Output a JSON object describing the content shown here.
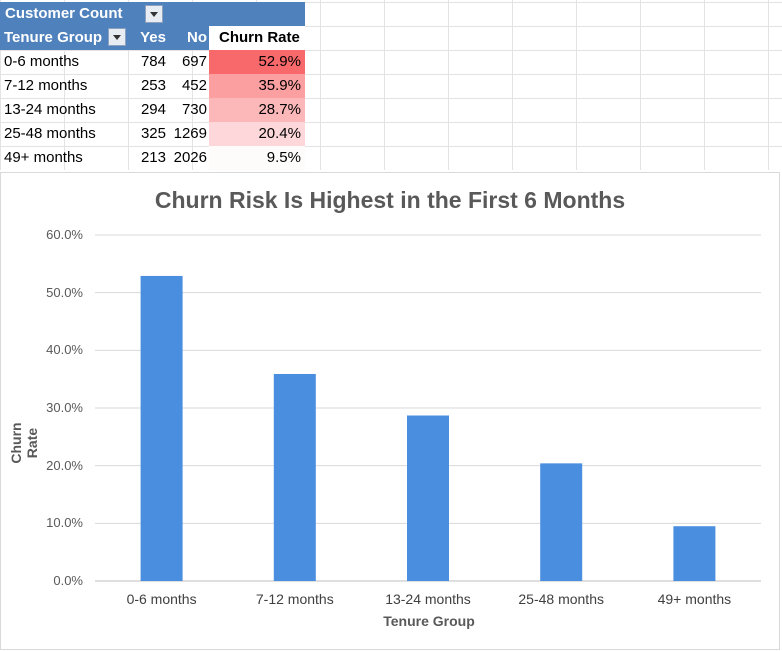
{
  "pivot": {
    "title": "Customer Count",
    "headers": {
      "group": "Tenure Group",
      "yes": "Yes",
      "no": "No",
      "churn": "Churn Rate"
    },
    "rows": [
      {
        "group": "0-6 months",
        "yes": "784",
        "no": "697",
        "churn": "52.9%"
      },
      {
        "group": "7-12 months",
        "yes": "253",
        "no": "452",
        "churn": "35.9%"
      },
      {
        "group": "13-24 months",
        "yes": "294",
        "no": "730",
        "churn": "28.7%"
      },
      {
        "group": "25-48 months",
        "yes": "325",
        "no": "1269",
        "churn": "20.4%"
      },
      {
        "group": "49+ months",
        "yes": "213",
        "no": "2026",
        "churn": "9.5%"
      }
    ],
    "heat_colors": [
      "#f8696b",
      "#fb9fa1",
      "#fcb7b9",
      "#fdd7d9",
      "#fefbfb"
    ],
    "header_color": "#4f81bd"
  },
  "chart_data": {
    "type": "bar",
    "title": "Churn Risk Is Highest in the First 6 Months",
    "xlabel": "Tenure Group",
    "ylabel": "Churn Rate",
    "categories": [
      "0-6 months",
      "7-12 months",
      "13-24 months",
      "25-48 months",
      "49+ months"
    ],
    "values": [
      0.529,
      0.359,
      0.287,
      0.204,
      0.095
    ],
    "ylim": [
      0,
      0.6
    ],
    "yticks": [
      "0.0%",
      "10.0%",
      "20.0%",
      "30.0%",
      "40.0%",
      "50.0%",
      "60.0%"
    ],
    "grid": true,
    "legend": "none",
    "bar_color": "#4a8ee0"
  }
}
